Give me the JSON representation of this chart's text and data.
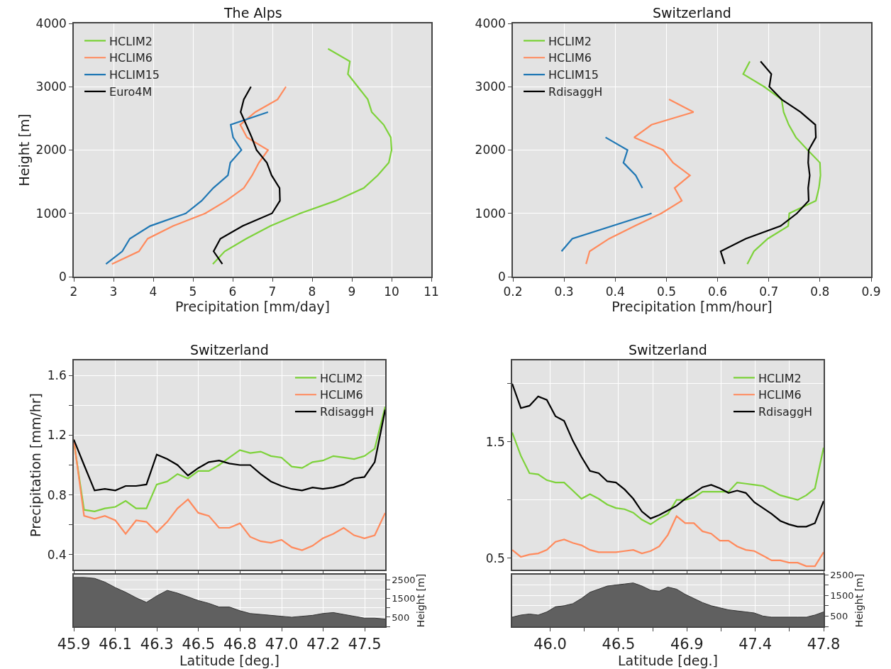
{
  "chart_data": [
    {
      "type": "line",
      "title": "The Alps",
      "xlabel": "Precipitation [mm/day]",
      "ylabel": "Height [m]",
      "xlim": [
        2,
        11
      ],
      "xticks": [
        2,
        3,
        4,
        5,
        6,
        7,
        8,
        9,
        10,
        11
      ],
      "ylim": [
        0,
        4000
      ],
      "yticks": [
        0,
        1000,
        2000,
        3000,
        4000
      ],
      "grid": true,
      "legend": "top left",
      "series": [
        {
          "name": "HCLIM2",
          "color": "#7dd23a",
          "x": [
            5.5,
            5.8,
            6.34,
            6.95,
            7.7,
            8.6,
            9.3,
            9.65,
            9.93,
            10.0,
            9.98,
            9.8,
            9.5,
            9.4,
            9.15,
            8.9,
            8.95,
            8.4
          ],
          "values": [
            200,
            400,
            600,
            800,
            1000,
            1200,
            1400,
            1600,
            1800,
            2000,
            2200,
            2400,
            2600,
            2800,
            3000,
            3200,
            3400,
            3600
          ]
        },
        {
          "name": "HCLIM6",
          "color": "#ff8a5c",
          "x": [
            2.96,
            3.64,
            3.86,
            4.5,
            5.31,
            5.84,
            6.28,
            6.49,
            6.66,
            6.89,
            6.36,
            6.19,
            6.57,
            7.13,
            7.34
          ],
          "values": [
            200,
            400,
            600,
            800,
            1000,
            1200,
            1400,
            1600,
            1800,
            2000,
            2200,
            2400,
            2600,
            2800,
            3000
          ]
        },
        {
          "name": "HCLIM15",
          "color": "#1f77b4",
          "x": [
            2.81,
            3.22,
            3.41,
            3.92,
            4.82,
            5.22,
            5.51,
            5.88,
            5.94,
            6.22,
            6.01,
            5.95,
            6.89
          ],
          "values": [
            200,
            400,
            600,
            800,
            1000,
            1200,
            1400,
            1600,
            1800,
            2000,
            2200,
            2400,
            2600
          ]
        },
        {
          "name": "Euro4M",
          "color": "#000000",
          "x": [
            5.74,
            5.52,
            5.69,
            6.25,
            6.99,
            7.19,
            7.18,
            6.98,
            6.86,
            6.6,
            6.48,
            6.34,
            6.2,
            6.28,
            6.46
          ],
          "values": [
            200,
            400,
            600,
            800,
            1000,
            1200,
            1400,
            1600,
            1800,
            2000,
            2200,
            2400,
            2600,
            2800,
            3000
          ]
        }
      ]
    },
    {
      "type": "line",
      "title": "Switzerland",
      "xlabel": "Precipitation [mm/hour]",
      "xlim": [
        0.2,
        0.9
      ],
      "xticks": [
        0.2,
        0.3,
        0.4,
        0.5,
        0.6,
        0.7,
        0.8,
        0.9
      ],
      "ylim": [
        0,
        4000
      ],
      "yticks": [
        0,
        1000,
        2000,
        3000,
        4000
      ],
      "grid": true,
      "legend": "top left",
      "series": [
        {
          "name": "HCLIM2",
          "color": "#7dd23a",
          "x": [
            0.658,
            0.671,
            0.698,
            0.738,
            0.74,
            0.792,
            0.798,
            0.801,
            0.8,
            0.776,
            0.753,
            0.739,
            0.729,
            0.725,
            0.691,
            0.65,
            0.663
          ],
          "values": [
            200,
            400,
            600,
            800,
            1000,
            1200,
            1400,
            1600,
            1800,
            2000,
            2200,
            2400,
            2600,
            2800,
            3000,
            3200,
            3400
          ]
        },
        {
          "name": "HCLIM6",
          "color": "#ff8a5c",
          "x": [
            0.343,
            0.35,
            0.388,
            0.438,
            0.49,
            0.53,
            0.516,
            0.546,
            0.513,
            0.494,
            0.437,
            0.471,
            0.553,
            0.505
          ],
          "values": [
            200,
            400,
            600,
            800,
            1000,
            1200,
            1400,
            1600,
            1800,
            2000,
            2200,
            2400,
            2600,
            2800
          ]
        },
        {
          "name": "HCLIM15",
          "color": "#1f77b4",
          "x": [
            0.295,
            0.316,
            0.471,
            null,
            0.453,
            0.44,
            0.416,
            0.424,
            0.381
          ],
          "values": [
            400,
            600,
            1000,
            null,
            1400,
            1600,
            1800,
            2000,
            2200
          ]
        },
        {
          "name": "RdisaggH",
          "color": "#000000",
          "x": [
            0.614,
            0.606,
            0.655,
            0.723,
            0.755,
            0.778,
            0.777,
            0.78,
            0.777,
            0.778,
            0.792,
            0.791,
            0.762,
            0.725,
            0.701,
            0.705,
            0.684
          ],
          "values": [
            200,
            400,
            600,
            800,
            1000,
            1200,
            1400,
            1600,
            1800,
            2000,
            2200,
            2400,
            2600,
            2800,
            3000,
            3200,
            3400
          ]
        }
      ]
    },
    {
      "type": "line",
      "title": "Switzerland",
      "ylabel": "Precipitation [mm/hr]",
      "tick_labels": "y",
      "grid": true,
      "legend": "top right",
      "x": [
        45.87,
        45.926,
        45.983,
        46.039,
        46.096,
        46.152,
        46.209,
        46.265,
        46.321,
        46.378,
        46.434,
        46.491,
        46.547,
        46.604,
        46.66,
        46.716,
        46.773,
        46.829,
        46.886,
        46.942,
        46.999,
        47.055,
        47.111,
        47.168,
        47.224,
        47.281,
        47.337,
        47.394,
        47.45,
        47.506,
        47.563
      ],
      "xlim": [
        45.87,
        47.563
      ],
      "xticks": [
        {
          "value": 45.87,
          "label": null
        },
        {
          "value": 46.096,
          "label": null
        },
        {
          "value": 46.322,
          "label": null
        },
        {
          "value": 46.548,
          "label": null
        },
        {
          "value": 46.774,
          "label": null
        },
        {
          "value": 47.0,
          "label": null
        },
        {
          "value": 47.226,
          "label": null
        },
        {
          "value": 47.452,
          "label": null
        }
      ],
      "ylim": [
        0.3,
        1.7
      ],
      "yticks": [
        0.4,
        {
          "value": 0.6,
          "label": null
        },
        0.8,
        {
          "value": 1.0,
          "label": null
        },
        1.2,
        {
          "value": 1.4,
          "label": null
        },
        1.6
      ],
      "series": [
        {
          "name": "HCLIM2",
          "color": "#7dd23a",
          "values": [
            1.16,
            0.7,
            0.69,
            0.71,
            0.72,
            0.76,
            0.71,
            0.71,
            0.87,
            0.89,
            0.94,
            0.91,
            0.96,
            0.96,
            1.0,
            1.05,
            1.1,
            1.08,
            1.09,
            1.06,
            1.05,
            0.99,
            0.98,
            1.02,
            1.03,
            1.06,
            1.05,
            1.04,
            1.06,
            1.11,
            1.39
          ]
        },
        {
          "name": "HCLIM6",
          "color": "#ff8a5c",
          "values": [
            1.17,
            0.66,
            0.64,
            0.66,
            0.63,
            0.54,
            0.63,
            0.62,
            0.55,
            0.62,
            0.71,
            0.77,
            0.68,
            0.66,
            0.58,
            0.58,
            0.61,
            0.52,
            0.49,
            0.48,
            0.5,
            0.45,
            0.43,
            0.46,
            0.51,
            0.54,
            0.58,
            0.53,
            0.51,
            0.53,
            0.68
          ]
        },
        {
          "name": "RdisaggH",
          "color": "#000000",
          "values": [
            1.17,
            1.0,
            0.83,
            0.84,
            0.83,
            0.86,
            0.86,
            0.87,
            1.07,
            1.04,
            1.0,
            0.93,
            0.98,
            1.02,
            1.03,
            1.01,
            1.0,
            1.0,
            0.94,
            0.89,
            0.86,
            0.84,
            0.83,
            0.85,
            0.84,
            0.85,
            0.87,
            0.91,
            0.92,
            1.02,
            1.37
          ]
        }
      ]
    },
    {
      "type": "area",
      "xlabel": "Latitude [deg.]",
      "ylabel": "Height [m]",
      "grid": true,
      "x": [
        45.87,
        45.926,
        45.983,
        46.039,
        46.096,
        46.152,
        46.209,
        46.265,
        46.321,
        46.378,
        46.434,
        46.491,
        46.547,
        46.604,
        46.66,
        46.716,
        46.773,
        46.829,
        46.886,
        46.942,
        46.999,
        47.055,
        47.111,
        47.168,
        47.224,
        47.281,
        47.337,
        47.394,
        47.45,
        47.506,
        47.563
      ],
      "xlim": [
        45.87,
        47.563
      ],
      "xticks": [
        {
          "value": 45.87,
          "label": "45.9"
        },
        {
          "value": 46.096,
          "label": "46.1"
        },
        {
          "value": 46.322,
          "label": "46.3"
        },
        {
          "value": 46.548,
          "label": "46.5"
        },
        {
          "value": 46.774,
          "label": "46.8"
        },
        {
          "value": 47.0,
          "label": "47.0"
        },
        {
          "value": 47.226,
          "label": "47.2"
        },
        {
          "value": 47.452,
          "label": "47.5"
        }
      ],
      "ylim": [
        0,
        2800
      ],
      "yticks": [
        {
          "value": 0,
          "label": null
        },
        500,
        {
          "value": 1000,
          "label": null
        },
        1500,
        {
          "value": 2000,
          "label": null
        },
        2500
      ],
      "series": [
        {
          "color": "#606060",
          "values": [
            2650,
            2650,
            2600,
            2400,
            2100,
            1850,
            1550,
            1300,
            1650,
            1950,
            1800,
            1600,
            1400,
            1250,
            1050,
            1050,
            850,
            700,
            650,
            600,
            550,
            500,
            550,
            600,
            700,
            750,
            650,
            550,
            450,
            450,
            400
          ]
        }
      ]
    },
    {
      "type": "line",
      "title": "Switzerland",
      "tick_labels": "y",
      "grid": true,
      "legend": "top right",
      "x": [
        45.75,
        45.807,
        45.864,
        45.921,
        45.978,
        46.035,
        46.092,
        46.149,
        46.206,
        46.262,
        46.319,
        46.376,
        46.433,
        46.49,
        46.547,
        46.604,
        46.661,
        46.718,
        46.775,
        46.832,
        46.889,
        46.946,
        47.003,
        47.06,
        47.117,
        47.174,
        47.231,
        47.288,
        47.344,
        47.401,
        47.458,
        47.515,
        47.572,
        47.629,
        47.686,
        47.743,
        47.8
      ],
      "xlim": [
        45.75,
        47.8
      ],
      "xticks": [
        {
          "value": 46.0,
          "label": null
        },
        {
          "value": 46.225,
          "label": null
        },
        {
          "value": 46.45,
          "label": null
        },
        {
          "value": 46.675,
          "label": null
        },
        {
          "value": 46.9,
          "label": null
        },
        {
          "value": 47.125,
          "label": null
        },
        {
          "value": 47.35,
          "label": null
        },
        {
          "value": 47.575,
          "label": null
        },
        {
          "value": 47.8,
          "label": null
        }
      ],
      "ylim": [
        0.4,
        2.2
      ],
      "yticks": [
        0.5,
        {
          "value": 1.0,
          "label": null
        },
        1.5,
        {
          "value": 2.0,
          "label": null
        }
      ],
      "series": [
        {
          "name": "HCLIM2",
          "color": "#7dd23a",
          "values": [
            1.58,
            1.38,
            1.23,
            1.22,
            1.17,
            1.15,
            1.15,
            1.08,
            1.01,
            1.05,
            1.01,
            0.96,
            0.93,
            0.92,
            0.89,
            0.83,
            0.79,
            0.84,
            0.88,
            1.0,
            1.0,
            1.02,
            1.07,
            1.07,
            1.07,
            1.07,
            1.15,
            1.14,
            1.13,
            1.12,
            1.08,
            1.04,
            1.02,
            1.0,
            1.04,
            1.1,
            1.45
          ]
        },
        {
          "name": "HCLIM6",
          "color": "#ff8a5c",
          "values": [
            0.57,
            0.51,
            0.53,
            0.54,
            0.57,
            0.64,
            0.66,
            0.63,
            0.61,
            0.57,
            0.55,
            0.55,
            0.55,
            0.56,
            0.57,
            0.54,
            0.56,
            0.6,
            0.7,
            0.86,
            0.8,
            0.8,
            0.73,
            0.71,
            0.65,
            0.65,
            0.6,
            0.57,
            0.56,
            0.52,
            0.48,
            0.48,
            0.46,
            0.46,
            0.43,
            0.43,
            0.55
          ]
        },
        {
          "name": "RdisaggH",
          "color": "#000000",
          "values": [
            2.0,
            1.79,
            1.81,
            1.89,
            1.86,
            1.72,
            1.68,
            1.51,
            1.37,
            1.25,
            1.23,
            1.16,
            1.15,
            1.09,
            1.01,
            0.9,
            0.84,
            0.87,
            0.91,
            0.95,
            1.01,
            1.06,
            1.11,
            1.13,
            1.1,
            1.06,
            1.08,
            1.06,
            0.98,
            0.93,
            0.88,
            0.82,
            0.79,
            0.77,
            0.77,
            0.8,
            0.99
          ]
        }
      ]
    },
    {
      "type": "area",
      "xlabel": "Latitude [deg.]",
      "ylabel": "Height [m]",
      "grid": true,
      "x": [
        45.75,
        45.807,
        45.864,
        45.921,
        45.978,
        46.035,
        46.092,
        46.149,
        46.206,
        46.262,
        46.319,
        46.376,
        46.433,
        46.49,
        46.547,
        46.604,
        46.661,
        46.718,
        46.775,
        46.832,
        46.889,
        46.946,
        47.003,
        47.06,
        47.117,
        47.174,
        47.231,
        47.288,
        47.344,
        47.401,
        47.458,
        47.515,
        47.572,
        47.629,
        47.686,
        47.743,
        47.8
      ],
      "xlim": [
        45.75,
        47.8
      ],
      "xticks": [
        {
          "value": 46.0,
          "label": "46.0"
        },
        {
          "value": 46.225,
          "label": null
        },
        {
          "value": 46.45,
          "label": "46.5"
        },
        {
          "value": 46.675,
          "label": null
        },
        46.9,
        {
          "value": 47.125,
          "label": null
        },
        {
          "value": 47.35,
          "label": "47.4"
        },
        {
          "value": 47.575,
          "label": null
        },
        47.8
      ],
      "ylim": [
        0,
        2500
      ],
      "yticks": [
        {
          "value": 0,
          "label": null
        },
        500,
        {
          "value": 1000,
          "label": null
        },
        1500,
        {
          "value": 2000,
          "label": null
        },
        2500
      ],
      "series": [
        {
          "color": "#606060",
          "values": [
            450,
            550,
            600,
            550,
            700,
            950,
            1000,
            1100,
            1350,
            1650,
            1800,
            1950,
            2000,
            2050,
            2100,
            1950,
            1750,
            1700,
            1900,
            1800,
            1550,
            1350,
            1150,
            1000,
            900,
            800,
            750,
            700,
            650,
            500,
            450,
            450,
            450,
            450,
            450,
            550,
            700
          ]
        }
      ]
    }
  ]
}
